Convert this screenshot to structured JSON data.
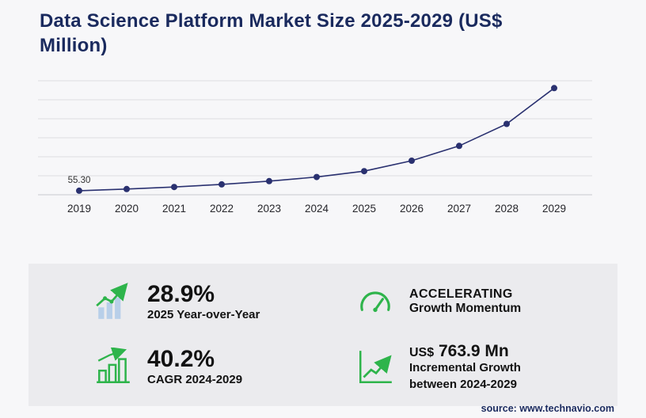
{
  "chart_data": {
    "type": "line",
    "title": "Data Science Platform Market Size 2025-2029 (US$ Million)",
    "unit": "US$ Million",
    "x": [
      "2019",
      "2020",
      "2021",
      "2022",
      "2023",
      "2024",
      "2025",
      "2026",
      "2027",
      "2028",
      "2029"
    ],
    "values": [
      55.3,
      69.5,
      87.3,
      109.6,
      137.7,
      172.8,
      222.8,
      313.0,
      440.0,
      629.0,
      936.7
    ],
    "ylim": [
      0,
      1000
    ],
    "grid": true,
    "gridline_count": 7,
    "legend": "none",
    "point_labels": [
      {
        "x": "2019",
        "text": "55.30"
      }
    ]
  },
  "stats": [
    {
      "icon": "bar-chart-growth-icon",
      "value": "28.9%",
      "label": "2025 Year-over-Year"
    },
    {
      "icon": "speedometer-icon",
      "value": "ACCELERATING",
      "label": "Growth Momentum"
    },
    {
      "icon": "outlined-bar-chart-icon",
      "value": "40.2%",
      "label": "CAGR 2024-2029"
    },
    {
      "icon": "growth-arrow-icon",
      "currency": "US$",
      "amount": "763.9 Mn",
      "label": "Incremental Growth between 2024-2029"
    }
  ],
  "source": "source: www.technavio.com",
  "colors": {
    "navy_title": "#1a2a5e",
    "line": "#2a3170",
    "accent_green": "#2eb44b",
    "light_blue": "#b8cfe9",
    "panel_bg": "#ebebee",
    "page_bg": "#f7f7f9",
    "gridline": "#dcdce1"
  }
}
